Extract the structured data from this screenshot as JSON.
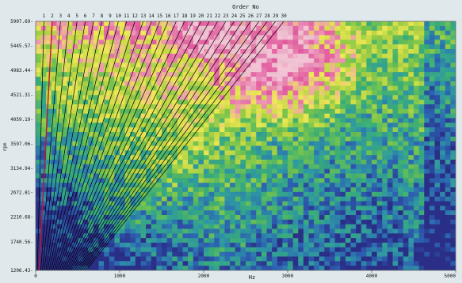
{
  "chart_data": {
    "type": "heatmap",
    "title": "Order No",
    "xlabel": "Hz",
    "ylabel": "rpm",
    "xlim": [
      0,
      5000
    ],
    "ylim": [
      1206.43,
      5907.69
    ],
    "x_ticks": [
      0,
      1000,
      2000,
      3000,
      4000,
      5000
    ],
    "y_ticks": [
      "1206.43",
      "1740.56",
      "2210.68",
      "2672.81",
      "3134.94",
      "3597.06",
      "4059.19",
      "4521.31",
      "4983.44",
      "5445.57",
      "5907.69"
    ],
    "orders": [
      1,
      2,
      3,
      4,
      5,
      6,
      7,
      8,
      9,
      10,
      11,
      12,
      13,
      14,
      15,
      16,
      17,
      18,
      19,
      20,
      21,
      22,
      23,
      24,
      25,
      26,
      27,
      28,
      29,
      30
    ],
    "order_line_color": "#000000",
    "colormap": [
      "#2b2f8a",
      "#2d62b6",
      "#2f9aa8",
      "#3bb27a",
      "#7cc94e",
      "#c7de45",
      "#f3ee58",
      "#f29ab7",
      "#e85aa2",
      "#f6c8d8"
    ],
    "intensity_features": [
      {
        "desc": "low band",
        "rpm": [
          1206.43,
          2400
        ],
        "hz": [
          0,
          2500
        ],
        "level": 0.15
      },
      {
        "desc": "broad hotspot",
        "center_hz": 3000,
        "center_rpm": 5200,
        "level": 0.95
      },
      {
        "desc": "upper-left hotspot",
        "center_hz": 2000,
        "center_rpm": 5600,
        "level": 0.85
      }
    ]
  }
}
